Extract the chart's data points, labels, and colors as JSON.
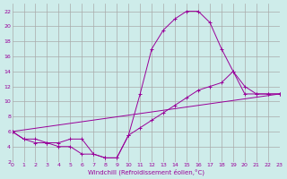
{
  "xlabel": "Windchill (Refroidissement éolien,°C)",
  "bg_color": "#ceecea",
  "grid_color": "#aaaaaa",
  "line_color": "#990099",
  "xlim": [
    0,
    23
  ],
  "ylim": [
    2,
    23
  ],
  "xticks": [
    0,
    1,
    2,
    3,
    4,
    5,
    6,
    7,
    8,
    9,
    10,
    11,
    12,
    13,
    14,
    15,
    16,
    17,
    18,
    19,
    20,
    21,
    22,
    23
  ],
  "yticks": [
    2,
    4,
    6,
    8,
    10,
    12,
    14,
    16,
    18,
    20,
    22
  ],
  "curve1_x": [
    0,
    1,
    2,
    3,
    4,
    5,
    6,
    7,
    8,
    9,
    10,
    11,
    12,
    13,
    14,
    15,
    16,
    17,
    18,
    19,
    20,
    21,
    22,
    23
  ],
  "curve1_y": [
    6,
    5,
    5,
    4.5,
    4.5,
    5,
    5,
    3,
    2.5,
    2.5,
    5.5,
    11,
    17,
    19.5,
    21,
    22,
    22,
    20.5,
    17,
    14,
    11,
    11,
    11,
    11
  ],
  "curve2_x": [
    0,
    1,
    2,
    3,
    4,
    5,
    6,
    7,
    8,
    9,
    10,
    11,
    12,
    13,
    14,
    15,
    16,
    17,
    18,
    19,
    20,
    21,
    22,
    23
  ],
  "curve2_y": [
    6,
    5,
    4.5,
    4.5,
    4,
    4,
    3,
    3,
    2.5,
    2.5,
    5.5,
    6.5,
    7.5,
    8.5,
    9.5,
    10.5,
    11.5,
    12,
    12.5,
    14,
    12,
    11,
    11,
    11
  ],
  "curve3_x": [
    0,
    23
  ],
  "curve3_y": [
    6,
    11
  ]
}
